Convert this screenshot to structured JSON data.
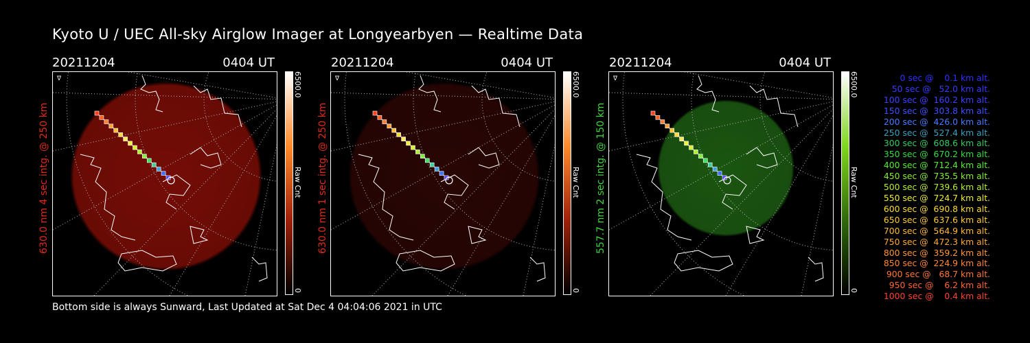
{
  "title": "Kyoto U / UEC All-sky Airglow Imager at Longyearbyen — Realtime Data",
  "footer": "Bottom side is always Sunward, Last Updated at Sat Dec  4 04:04:06 2021 in UTC",
  "panels": [
    {
      "date": "20211204",
      "time": "0404 UT",
      "ylabel": "630.0 nm 4 sec intg. @ 250 km",
      "label_color": "#e02a1a",
      "image_color": "#7a0d06",
      "image_opacity": 0.95,
      "cbar_max": "6500.0",
      "cbar_min": "0",
      "cbar_unit": "Raw Cnt",
      "cbar_colors": [
        "#ffffff",
        "#ff8a2a",
        "#a0200a",
        "#000000"
      ]
    },
    {
      "date": "20211204",
      "time": "0404 UT",
      "ylabel": "630.0 nm 1 sec intg. @ 250 km",
      "label_color": "#e02a1a",
      "image_color": "#2a0604",
      "image_opacity": 0.95,
      "cbar_max": "6500.0",
      "cbar_min": "0",
      "cbar_unit": "Raw Cnt",
      "cbar_colors": [
        "#ffffff",
        "#ff8a2a",
        "#a0200a",
        "#000000"
      ]
    },
    {
      "date": "20211204",
      "time": "0404 UT",
      "ylabel": "557.7 nm 2 sec intg. @ 150 km",
      "label_color": "#3fd63f",
      "image_color": "#1c5a12",
      "image_opacity": 0.95,
      "cbar_max": "6500.0",
      "cbar_min": "0",
      "cbar_unit": "Raw Cnt",
      "cbar_colors": [
        "#ffffff",
        "#7fd61f",
        "#2f6a0a",
        "#000000"
      ]
    }
  ],
  "track_colors": [
    "#ff4020",
    "#ff6020",
    "#ff8030",
    "#ffa030",
    "#ffc030",
    "#ffd840",
    "#ffe860",
    "#f0f040",
    "#d8f030",
    "#b0f030",
    "#80f040",
    "#40e060",
    "#40d0a0",
    "#40a0e0",
    "#4070ff",
    "#5040ff"
  ],
  "legend": [
    {
      "text": "   0 sec @    0.1 km alt.",
      "color": "#3030ff"
    },
    {
      "text": "  50 sec @   52.0 km alt.",
      "color": "#3a3aff"
    },
    {
      "text": " 100 sec @  160.2 km alt.",
      "color": "#4040ff"
    },
    {
      "text": " 150 sec @  303.8 km alt.",
      "color": "#4050ff"
    },
    {
      "text": " 200 sec @  426.0 km alt.",
      "color": "#4a7aff"
    },
    {
      "text": " 250 sec @  527.4 km alt.",
      "color": "#3aa0c0"
    },
    {
      "text": " 300 sec @  608.6 km alt.",
      "color": "#33cc66"
    },
    {
      "text": " 350 sec @  670.2 km alt.",
      "color": "#33dd44"
    },
    {
      "text": " 400 sec @  712.4 km alt.",
      "color": "#55ee33"
    },
    {
      "text": " 450 sec @  735.5 km alt.",
      "color": "#88ee33"
    },
    {
      "text": " 500 sec @  739.6 km alt.",
      "color": "#bbee33"
    },
    {
      "text": " 550 sec @  724.7 km alt.",
      "color": "#eeee33"
    },
    {
      "text": " 600 sec @  690.8 km alt.",
      "color": "#ffdd33"
    },
    {
      "text": " 650 sec @  637.6 km alt.",
      "color": "#ffcc33"
    },
    {
      "text": " 700 sec @  564.9 km alt.",
      "color": "#ffbb33"
    },
    {
      "text": " 750 sec @  472.3 km alt.",
      "color": "#ffaa33"
    },
    {
      "text": " 800 sec @  359.2 km alt.",
      "color": "#ff9933"
    },
    {
      "text": " 850 sec @  224.9 km alt.",
      "color": "#ff8833"
    },
    {
      "text": " 900 sec @   68.7 km alt.",
      "color": "#ff7733"
    },
    {
      "text": " 950 sec @    6.2 km alt.",
      "color": "#ff6633"
    },
    {
      "text": "1000 sec @    0.4 km alt.",
      "color": "#ff4433"
    }
  ]
}
